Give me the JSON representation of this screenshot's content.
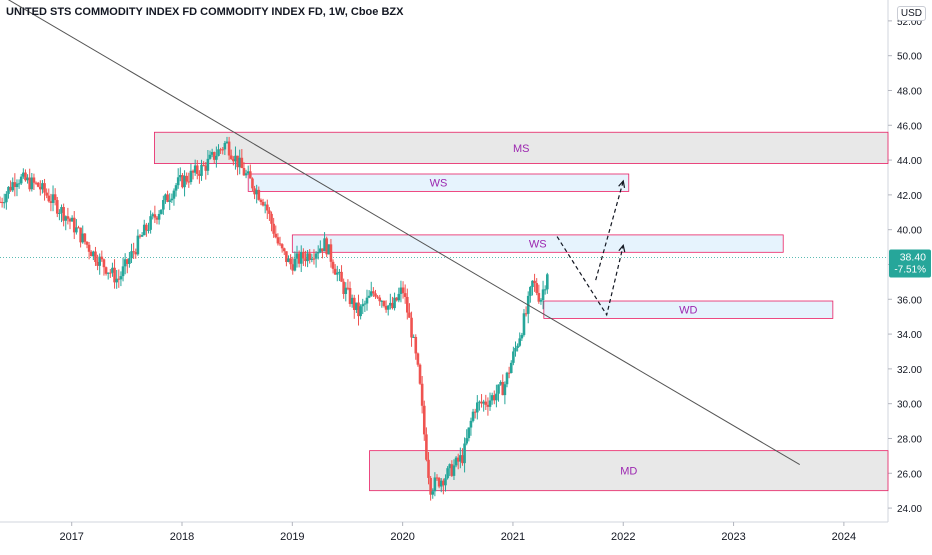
{
  "title": "UNITED STS COMMODITY INDEX FD COMMODITY INDEX FD, 1W, Cboe BZX",
  "currency": "USD",
  "price_badge": {
    "price": "38.40",
    "change": "-7.51%"
  },
  "colors": {
    "up": "#26a69a",
    "down": "#ef5350",
    "zone_border": "#e91e63",
    "zone_gray": "#e0e0e0",
    "zone_blue": "#e3f2fd",
    "zone_text": "#9c27b0",
    "trendline": "#555555",
    "badge": "#26a69a"
  },
  "chart_data": {
    "type": "candlestick",
    "x_axis": {
      "labels": [
        "2017",
        "2018",
        "2019",
        "2020",
        "2021",
        "2022",
        "2023",
        "2024"
      ],
      "range": [
        2016.35,
        2024.4
      ]
    },
    "y_axis": {
      "range": [
        23.2,
        53.2
      ],
      "ticks": [
        24,
        26,
        28,
        30,
        32,
        34,
        36,
        38,
        40,
        42,
        44,
        46,
        48,
        50,
        52
      ]
    },
    "series_anchor_points": [
      [
        2016.35,
        41.6
      ],
      [
        2016.5,
        43.0
      ],
      [
        2016.7,
        42.5
      ],
      [
        2016.95,
        40.8
      ],
      [
        2017.2,
        38.6
      ],
      [
        2017.42,
        37.1
      ],
      [
        2017.65,
        39.8
      ],
      [
        2017.95,
        42.6
      ],
      [
        2018.2,
        43.6
      ],
      [
        2018.4,
        45.0
      ],
      [
        2018.55,
        43.4
      ],
      [
        2018.75,
        41.6
      ],
      [
        2018.88,
        39.0
      ],
      [
        2018.98,
        38.0
      ],
      [
        2019.15,
        38.6
      ],
      [
        2019.3,
        39.2
      ],
      [
        2019.45,
        36.8
      ],
      [
        2019.6,
        35.2
      ],
      [
        2019.75,
        36.5
      ],
      [
        2019.9,
        35.4
      ],
      [
        2020.0,
        36.6
      ],
      [
        2020.08,
        34.2
      ],
      [
        2020.15,
        31.4
      ],
      [
        2020.2,
        28.0
      ],
      [
        2020.25,
        25.2
      ],
      [
        2020.4,
        25.9
      ],
      [
        2020.55,
        27.0
      ],
      [
        2020.65,
        29.8
      ],
      [
        2020.78,
        30.2
      ],
      [
        2020.92,
        31.0
      ],
      [
        2021.02,
        33.1
      ],
      [
        2021.12,
        35.2
      ],
      [
        2021.18,
        37.0
      ],
      [
        2021.25,
        36.0
      ],
      [
        2021.3,
        37.2
      ],
      [
        2021.33,
        38.4
      ]
    ],
    "zones": [
      {
        "label": "MS",
        "x": [
          2017.75,
          2024.4
        ],
        "y": [
          43.8,
          45.6
        ],
        "style": "gray"
      },
      {
        "label": "WS",
        "x": [
          2018.6,
          2022.05
        ],
        "y": [
          42.2,
          43.2
        ],
        "style": "blue"
      },
      {
        "label": "WS",
        "x": [
          2019.0,
          2023.45
        ],
        "y": [
          38.7,
          39.7
        ],
        "style": "blue"
      },
      {
        "label": "WD",
        "x": [
          2021.28,
          2023.9
        ],
        "y": [
          34.9,
          35.9
        ],
        "style": "blue"
      },
      {
        "label": "MD",
        "x": [
          2019.7,
          2024.4
        ],
        "y": [
          25.0,
          27.3
        ],
        "style": "gray"
      }
    ],
    "trendline": [
      [
        2016.35,
        53.5
      ],
      [
        2023.6,
        26.5
      ]
    ],
    "projection_paths": [
      [
        [
          2021.4,
          39.6
        ],
        [
          2021.85,
          35.1
        ],
        [
          2022.0,
          39.1
        ]
      ],
      [
        [
          2021.75,
          37.1
        ],
        [
          2022.0,
          42.8
        ]
      ]
    ],
    "current_price": 38.4
  }
}
